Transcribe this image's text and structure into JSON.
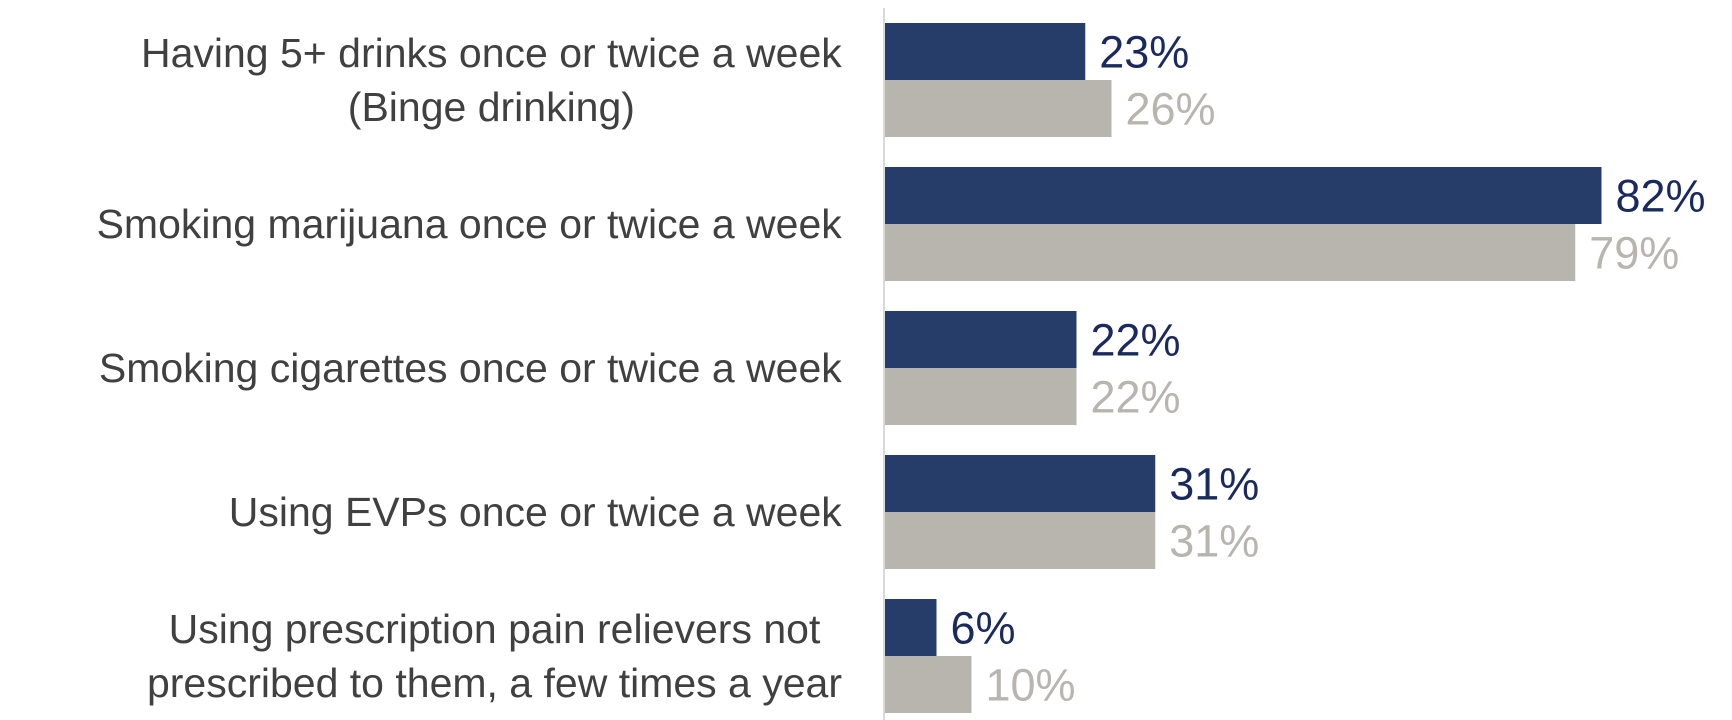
{
  "chart_data": {
    "type": "bar",
    "orientation": "horizontal",
    "categories": [
      [
        "Having 5+ drinks once or twice a week",
        "(Binge drinking)"
      ],
      [
        "Smoking marijuana once or twice a week"
      ],
      [
        "Smoking cigarettes once or twice a week"
      ],
      [
        "Using EVPs once or twice a week"
      ],
      [
        "Using prescription pain relievers not",
        "prescribed to them, a few times a year"
      ]
    ],
    "series": [
      {
        "values": [
          23,
          82,
          22,
          31,
          6
        ],
        "color": "#253d68",
        "label_color": "#1b2a5e"
      },
      {
        "values": [
          26,
          79,
          22,
          31,
          10
        ],
        "color": "#b8b4ae",
        "label_color": "#b8b4ae"
      }
    ],
    "value_suffix": "%",
    "xlim": [
      0,
      100
    ],
    "grid": false,
    "legend": "none",
    "axis_color": "#d9d9d9"
  }
}
